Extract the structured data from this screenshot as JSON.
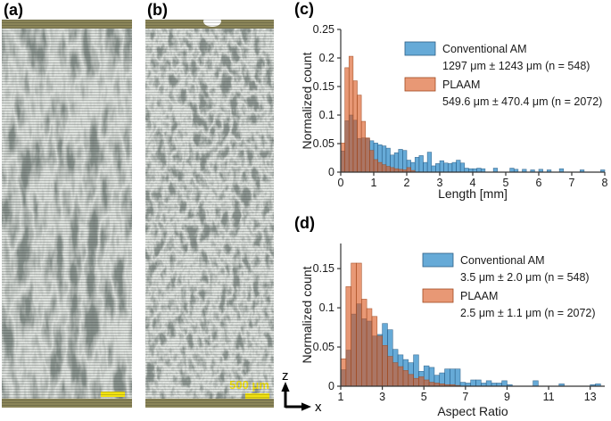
{
  "figure": {
    "panels": {
      "a": {
        "label": "(a)",
        "scale_bar": {
          "label": ""
        }
      },
      "b": {
        "label": "(b)",
        "scale_bar": {
          "label": "500 μm"
        }
      }
    },
    "axis_indicator": {
      "vertical_label": "z",
      "horizontal_label": "x"
    },
    "colors": {
      "conventional_am_fill": "#0072BD",
      "conventional_am_edge": "#2E5F86",
      "plaam_fill": "#D95319",
      "plaam_edge": "#A04A20",
      "fill_opacity": 0.6,
      "axis_color": "#333333",
      "text_color": "#1a1a1a",
      "substrate_band": "#8B8558",
      "scale_bar_yellow": "#F2E211",
      "micrograph_dark": "#3A403E",
      "micrograph_light": "#B7BEB7"
    }
  },
  "chart_data": [
    {
      "type": "bar",
      "panel": "(c)",
      "title": "",
      "xlabel": "Length [mm]",
      "ylabel": "Normalized count",
      "xlim": [
        0,
        8
      ],
      "ylim": [
        0,
        0.25
      ],
      "xticks": [
        0,
        1,
        2,
        3,
        4,
        5,
        6,
        7,
        8
      ],
      "yticks": [
        0,
        0.05,
        0.1,
        0.15,
        0.2,
        0.25
      ],
      "bin_start": 0,
      "bin_width": 0.125,
      "grid": false,
      "legend_position": "upper right",
      "series": [
        {
          "name": "Conventional AM",
          "stats": "1297 μm ± 1243 μm (n = 548)",
          "color_key": "conventional_am",
          "values": [
            0.037,
            0.09,
            0.1,
            0.091,
            0.059,
            0.06,
            0.059,
            0.055,
            0.051,
            0.048,
            0.046,
            0.042,
            0.03,
            0.034,
            0.04,
            0.038,
            0.021,
            0.017,
            0.026,
            0.029,
            0.017,
            0.035,
            0.011,
            0.015,
            0.02,
            0.016,
            0.015,
            0.017,
            0.021,
            0.016,
            0.007,
            0.006,
            0.006,
            0.007,
            0.006,
            0,
            0,
            0.007,
            0,
            0,
            0,
            0.007,
            0.005,
            0,
            0.005,
            0,
            0.004,
            0,
            0.005,
            0,
            0.004,
            0,
            0,
            0.006,
            0,
            0,
            0,
            0,
            0.004,
            0,
            0,
            0,
            0,
            0.004
          ]
        },
        {
          "name": "PLAAM",
          "stats": "549.6 μm ± 470.4 μm (n = 2072)",
          "color_key": "plaam",
          "values": [
            0.051,
            0.183,
            0.203,
            0.16,
            0.135,
            0.089,
            0.06,
            0.038,
            0.022,
            0.017,
            0.013,
            0.01,
            0.008,
            0.006,
            0.005,
            0.004,
            0.008,
            0.003
          ]
        }
      ]
    },
    {
      "type": "bar",
      "panel": "(d)",
      "title": "",
      "xlabel": "Aspect Ratio",
      "ylabel": "Normalized count",
      "xlim": [
        1,
        13.7
      ],
      "ylim": [
        0,
        0.182
      ],
      "xticks": [
        1,
        3,
        5,
        7,
        9,
        11,
        13
      ],
      "yticks": [
        0,
        0.05,
        0.1,
        0.15
      ],
      "bin_start": 1,
      "bin_width": 0.25,
      "grid": false,
      "legend_position": "upper right",
      "series": [
        {
          "name": "Conventional AM",
          "stats": "3.5 μm ± 2.0 μm (n = 548)",
          "color_key": "conventional_am",
          "values": [
            0.021,
            0.046,
            0.092,
            0.105,
            0.086,
            0.083,
            0.064,
            0.066,
            0.08,
            0.072,
            0.047,
            0.04,
            0.034,
            0.03,
            0.04,
            0.019,
            0.026,
            0.024,
            0.014,
            0.017,
            0.022,
            0.022,
            0.022,
            0.005,
            0.004,
            0.008,
            0.008,
            0.004,
            0.007,
            0.004,
            0.004,
            0.007,
            0.002,
            0,
            0,
            0,
            0,
            0.007,
            0,
            0,
            0,
            0,
            0.003,
            0,
            0,
            0,
            0,
            0,
            0.002,
            0.003
          ]
        },
        {
          "name": "PLAAM",
          "stats": "2.5 μm ± 1.1 μm (n = 2072)",
          "color_key": "plaam",
          "values": [
            0.035,
            0.127,
            0.157,
            0.157,
            0.111,
            0.099,
            0.089,
            0.064,
            0.052,
            0.038,
            0.03,
            0.025,
            0.02,
            0.015,
            0.01,
            0.012,
            0.008,
            0.005,
            0.004,
            0.003,
            0.002,
            0.002,
            0.001
          ]
        }
      ]
    }
  ]
}
